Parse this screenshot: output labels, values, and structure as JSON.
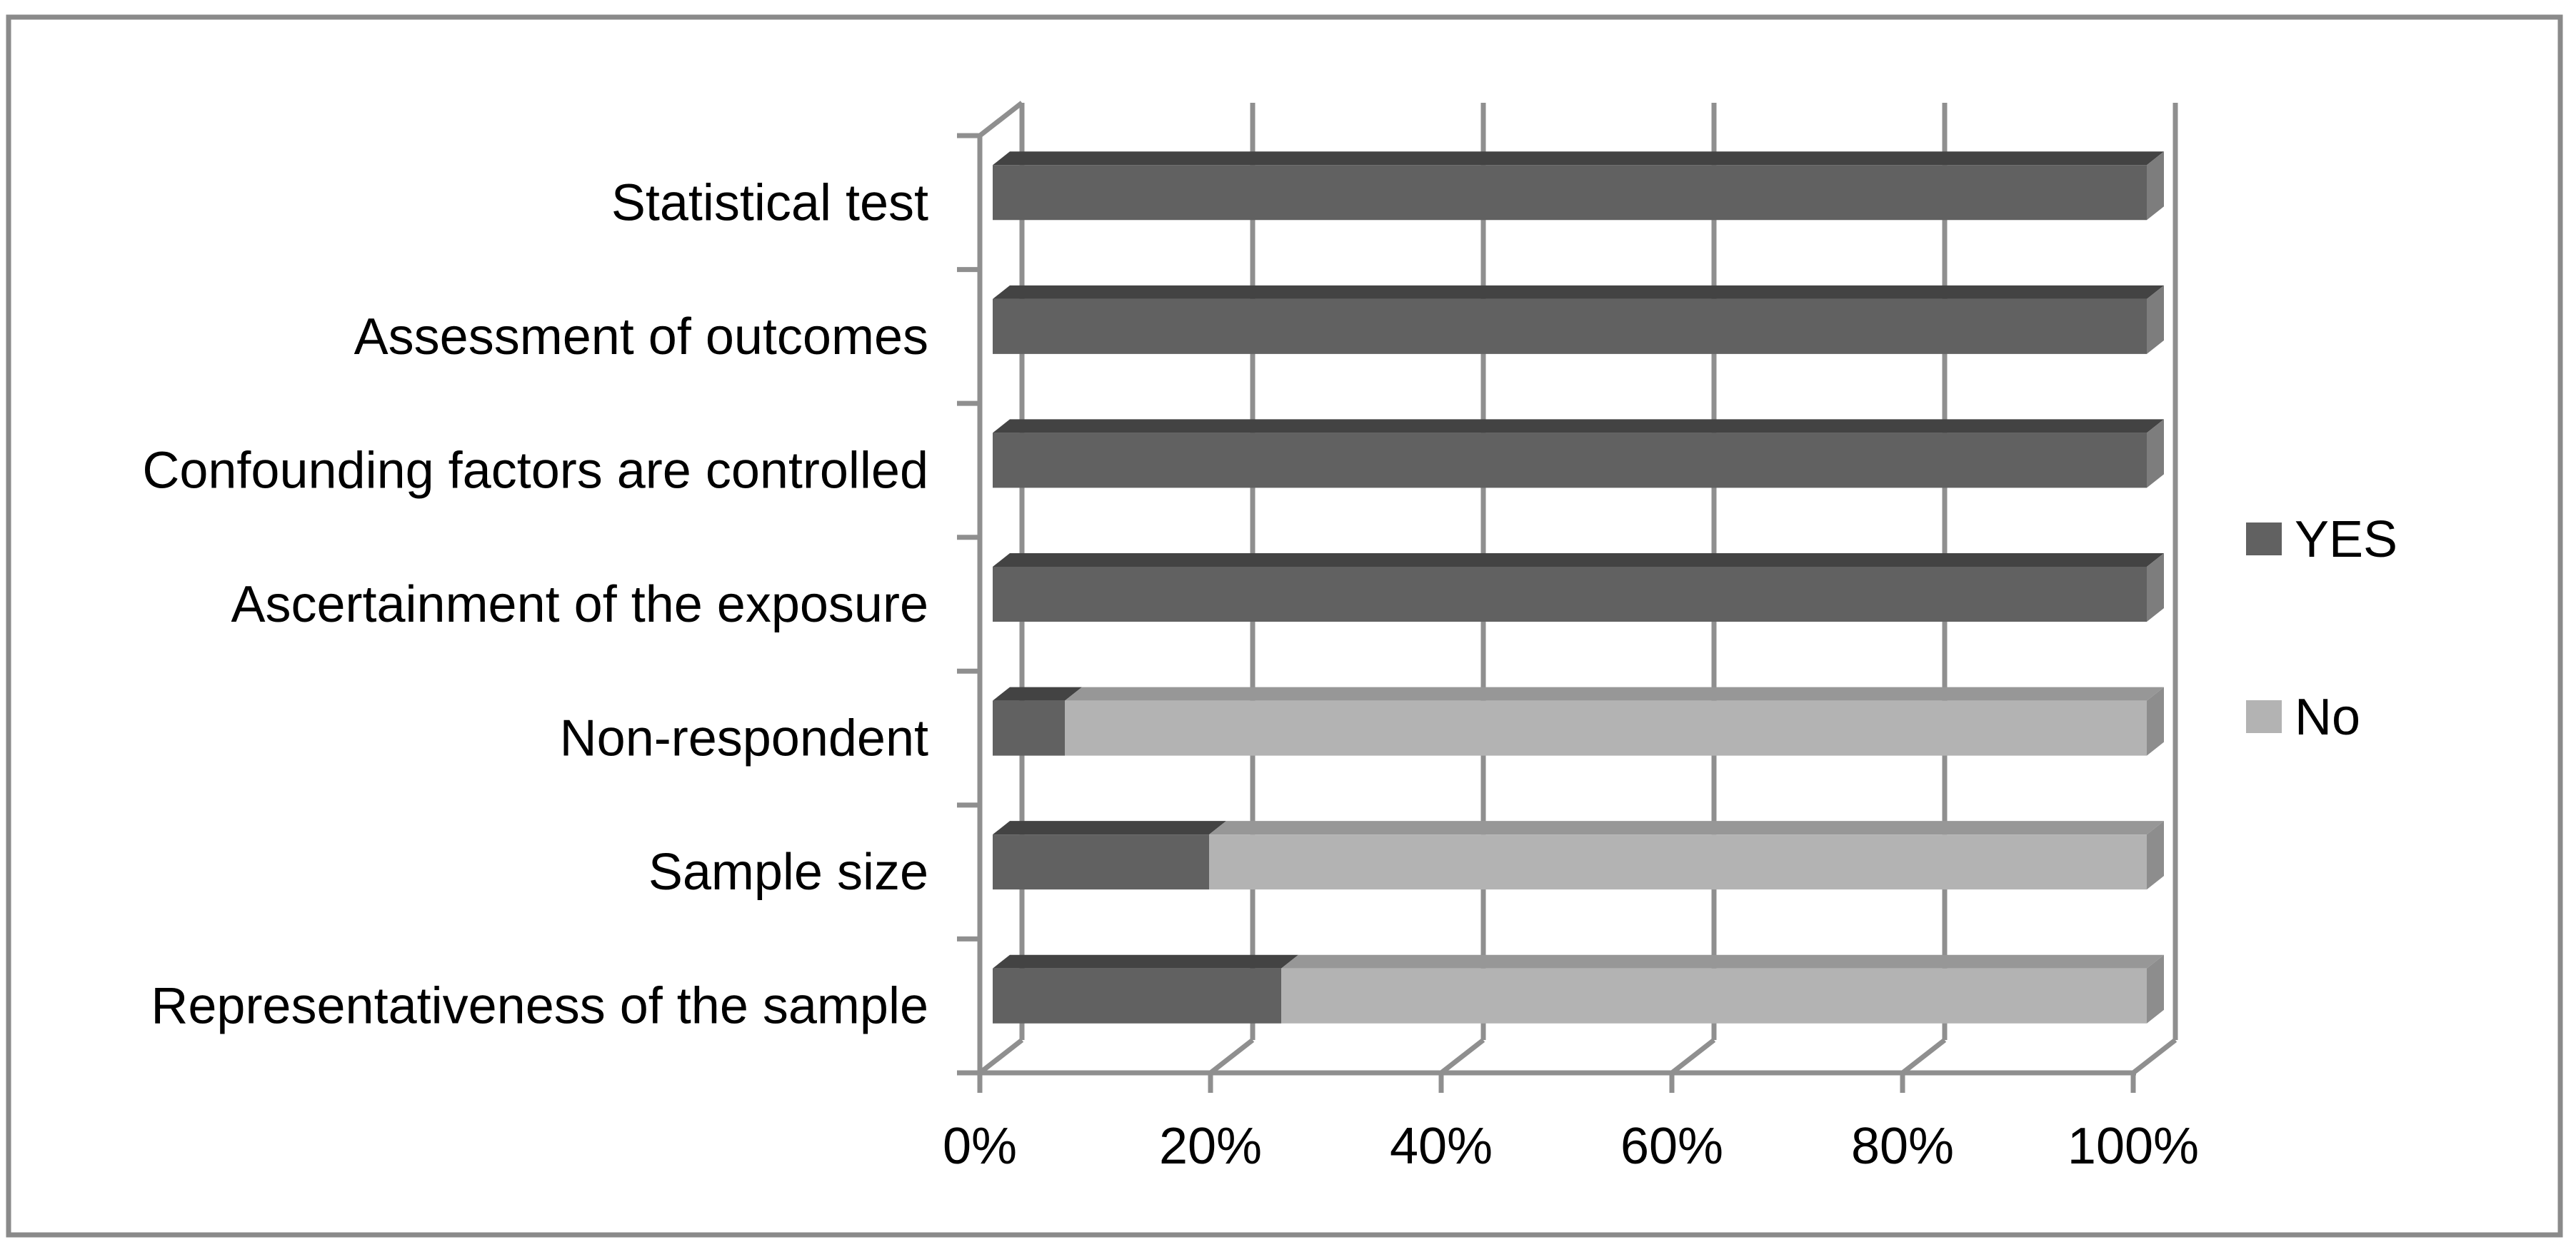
{
  "figure": {
    "background_color": "#ffffff",
    "frame_border_color": "#8a8a8a",
    "axis_line_color": "#8f8f8f",
    "text_color": "#000000"
  },
  "legend": {
    "items": [
      {
        "label": "YES",
        "color": "#616161"
      },
      {
        "label": "No",
        "color": "#b3b3b3"
      }
    ]
  },
  "chart_data": {
    "type": "bar",
    "subtype": "horizontal-stacked-3d",
    "title": "",
    "xlabel": "",
    "ylabel": "",
    "categories": [
      "Statistical test",
      "Assessment of outcomes",
      "Confounding factors are controlled",
      "Ascertainment of the exposure",
      "Non-respondent",
      "Sample size",
      "Representativeness of the sample"
    ],
    "series": [
      {
        "name": "YES",
        "values": [
          100,
          100,
          100,
          100,
          6.25,
          18.75,
          25
        ],
        "color_front": "#616161",
        "color_top": "#434343",
        "color_side": "#7d7d7d"
      },
      {
        "name": "No",
        "values": [
          0,
          0,
          0,
          0,
          93.75,
          81.25,
          75
        ],
        "color_front": "#b3b3b3",
        "color_top": "#979797",
        "color_side": "#8d8d8d"
      }
    ],
    "x_tick_labels": [
      "0%",
      "20%",
      "40%",
      "60%",
      "80%",
      "100%"
    ],
    "xlim": [
      0,
      100
    ],
    "grid": true,
    "legend_position": "right"
  }
}
